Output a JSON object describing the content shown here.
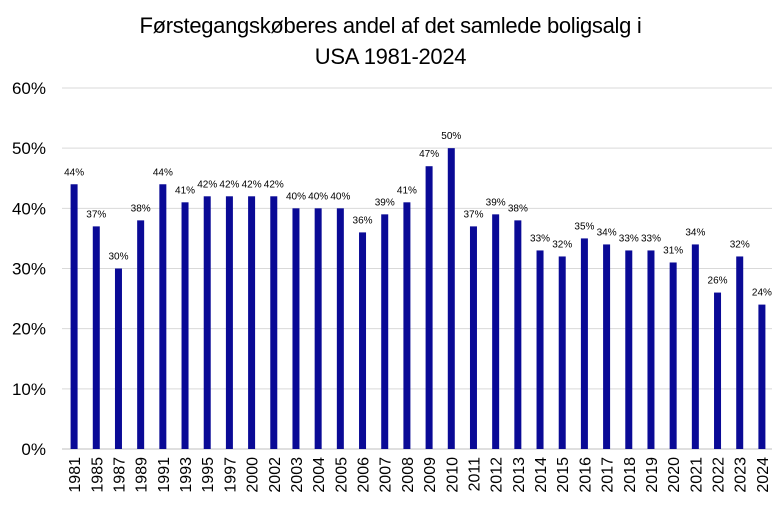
{
  "chart_data": {
    "type": "bar",
    "title_lines": [
      "Førstegangskøberes andel af det samlede boligsalg i",
      "USA 1981-2024"
    ],
    "categories": [
      "1981",
      "1985",
      "1987",
      "1989",
      "1991",
      "1993",
      "1995",
      "1997",
      "2000",
      "2002",
      "2003",
      "2004",
      "2005",
      "2006",
      "2007",
      "2008",
      "2009",
      "2010",
      "2011",
      "2012",
      "2013",
      "2014",
      "2015",
      "2016",
      "2017",
      "2018",
      "2019",
      "2020",
      "2021",
      "2022",
      "2023",
      "2024"
    ],
    "values": [
      44,
      37,
      30,
      38,
      44,
      41,
      42,
      42,
      42,
      42,
      40,
      40,
      40,
      36,
      39,
      41,
      47,
      50,
      37,
      39,
      38,
      33,
      32,
      35,
      34,
      33,
      33,
      31,
      34,
      26,
      32,
      24
    ],
    "data_labels": [
      "44%",
      "37%",
      "30%",
      "38%",
      "44%",
      "41%",
      "42%",
      "42%",
      "42%",
      "42%",
      "40%",
      "40%",
      "40%",
      "36%",
      "39%",
      "41%",
      "47%",
      "50%",
      "37%",
      "39%",
      "38%",
      "33%",
      "32%",
      "35%",
      "34%",
      "33%",
      "33%",
      "31%",
      "34%",
      "26%",
      "32%",
      "24%"
    ],
    "y_ticks": [
      "0%",
      "10%",
      "20%",
      "30%",
      "40%",
      "50%",
      "60%"
    ],
    "ylim": [
      0,
      60
    ],
    "grid": true,
    "bar_color": "#0a0a96",
    "grid_color": "#d9d9d9"
  }
}
